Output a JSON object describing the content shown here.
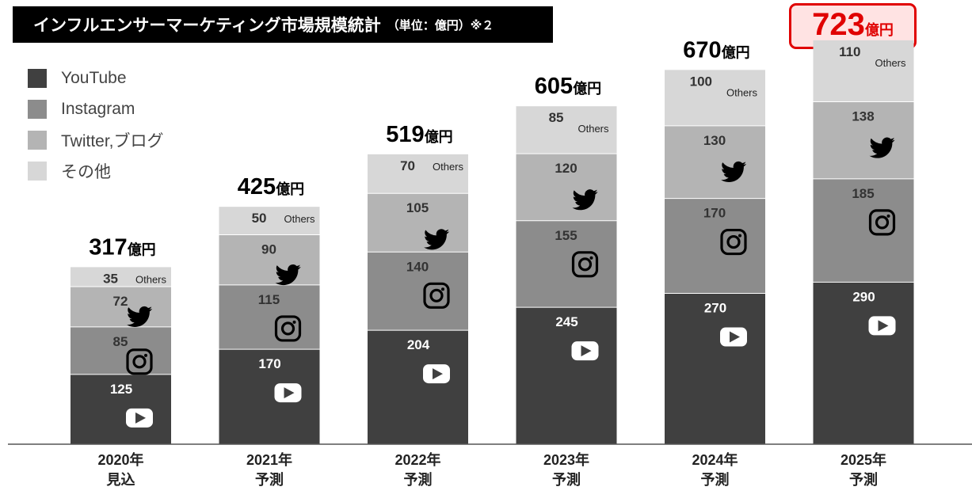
{
  "title": {
    "main": "インフルエンサーマーケティング市場規模統計",
    "sub": "（単位：億円）※２"
  },
  "highlight": {
    "value": "723",
    "unit": "億円"
  },
  "colors": {
    "youtube": "#404040",
    "instagram": "#8c8c8c",
    "twitter": "#b4b4b4",
    "others": "#d7d7d7",
    "highlight": "#e00000"
  },
  "legend": [
    {
      "label": "YouTube",
      "color": "#404040"
    },
    {
      "label": "Instagram",
      "color": "#8c8c8c"
    },
    {
      "label": "Twitter,ブログ",
      "color": "#b4b4b4"
    },
    {
      "label": "その他",
      "color": "#d7d7d7"
    }
  ],
  "chart_data": {
    "type": "bar",
    "stacked": true,
    "categories": [
      "2020年 見込",
      "2021年 予測",
      "2022年 予測",
      "2023年 予測",
      "2024年 予測",
      "2025年 予測"
    ],
    "category_lines": [
      [
        "2020年",
        "見込"
      ],
      [
        "2021年",
        "予測"
      ],
      [
        "2022年",
        "予測"
      ],
      [
        "2023年",
        "予測"
      ],
      [
        "2024年",
        "予測"
      ],
      [
        "2025年",
        "予測"
      ]
    ],
    "series": [
      {
        "name": "YouTube",
        "values": [
          125,
          170,
          204,
          245,
          270,
          290
        ],
        "icon": "youtube-icon"
      },
      {
        "name": "Instagram",
        "values": [
          85,
          115,
          140,
          155,
          170,
          185
        ],
        "icon": "instagram-icon"
      },
      {
        "name": "Twitter,ブログ",
        "values": [
          72,
          90,
          105,
          120,
          130,
          138
        ],
        "icon": "twitter-icon"
      },
      {
        "name": "その他",
        "values": [
          35,
          50,
          70,
          85,
          100,
          110
        ],
        "tag": "Others"
      }
    ],
    "totals": [
      317,
      425,
      519,
      605,
      670,
      723
    ],
    "total_unit": "億円",
    "ylim": [
      0,
      800
    ],
    "grid": false,
    "legend_position": "top-left"
  }
}
